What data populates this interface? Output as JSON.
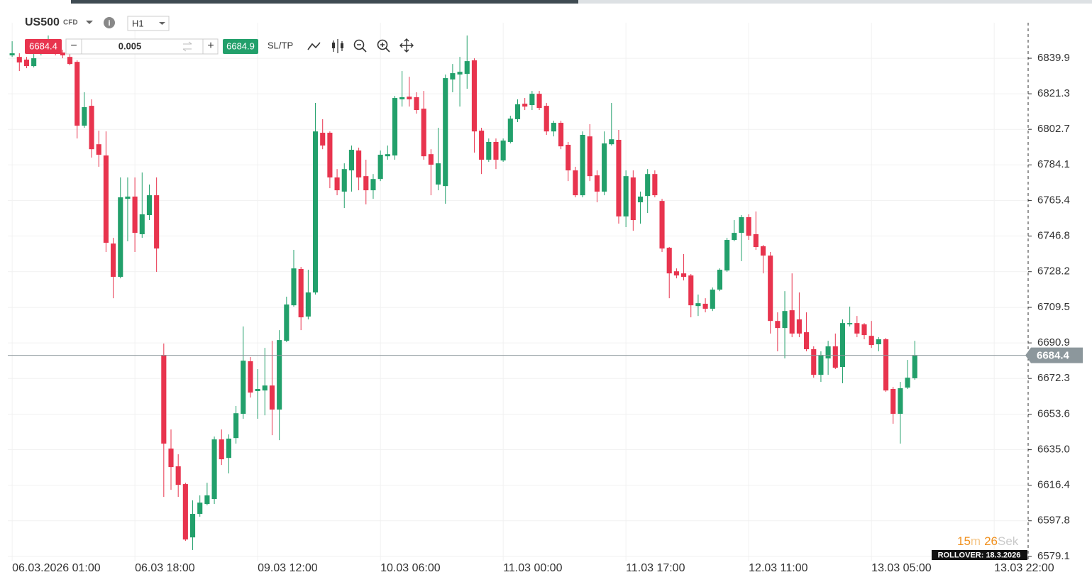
{
  "toolbar": {
    "symbol": "US500",
    "badge": "CFD",
    "timeframe": "H1",
    "sell": "6684.4",
    "volume": "0.005",
    "buy": "6684.9",
    "sltp": "SL/TP"
  },
  "chart_data": {
    "type": "candlestick",
    "up_color": "#22a06b",
    "down_color": "#e8344e",
    "grid": true,
    "open": [
      6841.4,
      6840.6,
      6839.2,
      6835.8,
      6842.5,
      6843.6,
      6845.1,
      6842.9,
      6840.6,
      6838.0,
      6804.6,
      6815.0,
      6794.9,
      6789.0,
      6742.9,
      6725.5,
      6766.3,
      6767.5,
      6747.8,
      6757.8,
      6768.2,
      6684.6,
      6635.6,
      6626.3,
      6617.0,
      6589.1,
      6601.4,
      6606.6,
      6609.2,
      6640.4,
      6630.7,
      6641.1,
      6653.8,
      6681.3,
      6665.7,
      6666.0,
      6668.6,
      6656.0,
      6692.0,
      6710.6,
      6729.6,
      6704.7,
      6717.3,
      6800.9,
      6800.9,
      6777.5,
      6770.1,
      6781.2,
      6791.6,
      6778.2,
      6770.8,
      6776.7,
      6788.6,
      6789.0,
      6818.4,
      6819.8,
      6819.5,
      6813.5,
      6789.7,
      6773.8,
      6773.0,
      6828.8,
      6831.4,
      6831.7,
      6838.8,
      6802.0,
      6786.8,
      6796.1,
      6786.4,
      6796.1,
      6808.0,
      6816.1,
      6815.4,
      6821.3,
      6815.0,
      6801.6,
      6806.1,
      6794.6,
      6781.2,
      6768.2,
      6799.0,
      6778.6,
      6770.1,
      6794.9,
      6797.2,
      6757.1,
      6777.5,
      6764.5,
      6767.8,
      6779.3,
      6765.2,
      6740.7,
      6728.4,
      6727.3,
      6726.2,
      6710.2,
      6711.4,
      6708.8,
      6718.8,
      6728.8,
      6744.8,
      6748.5,
      6756.7,
      6747.8,
      6741.5,
      6736.6,
      6702.4,
      6698.7,
      6708.0,
      6703.2,
      6696.5,
      6687.6,
      6674.2,
      6682.8,
      6689.1,
      6678.3,
      6700.6,
      6701.3,
      6700.6,
      6694.6,
      6690.2,
      6692.8,
      6666.8,
      6653.8,
      6667.5,
      6672.4
    ],
    "high": [
      6848.8,
      6842.5,
      6840.6,
      6842.5,
      6846.6,
      6851.8,
      6848.1,
      6844.4,
      6842.5,
      6838.8,
      6822.1,
      6818.4,
      6802.0,
      6801.6,
      6745.9,
      6777.5,
      6777.5,
      6777.5,
      6780.1,
      6773.8,
      6777.5,
      6690.6,
      6645.6,
      6632.6,
      6617.7,
      6608.5,
      6611.1,
      6617.7,
      6641.9,
      6645.6,
      6643.0,
      6657.9,
      6699.5,
      6683.5,
      6677.2,
      6688.3,
      6692.0,
      6697.6,
      6715.1,
      6739.6,
      6730.7,
      6729.2,
      6816.5,
      6808.0,
      6801.6,
      6781.9,
      6784.9,
      6794.2,
      6793.1,
      6786.8,
      6779.3,
      6791.6,
      6794.2,
      6820.2,
      6833.2,
      6830.2,
      6822.1,
      6822.8,
      6792.3,
      6803.5,
      6831.4,
      6836.9,
      6840.6,
      6851.8,
      6839.9,
      6803.5,
      6797.9,
      6797.9,
      6797.9,
      6809.8,
      6818.4,
      6819.1,
      6822.8,
      6822.8,
      6816.5,
      6807.2,
      6807.2,
      6796.1,
      6783.1,
      6801.6,
      6805.4,
      6781.2,
      6801.6,
      6816.5,
      6802.4,
      6781.2,
      6781.2,
      6770.1,
      6781.9,
      6781.2,
      6766.3,
      6741.1,
      6729.9,
      6737.4,
      6727.0,
      6716.2,
      6714.3,
      6719.9,
      6729.9,
      6745.9,
      6755.2,
      6757.8,
      6758.2,
      6759.7,
      6742.2,
      6738.5,
      6706.9,
      6718.0,
      6727.3,
      6717.3,
      6706.9,
      6689.1,
      6686.5,
      6692.0,
      6695.8,
      6703.2,
      6709.9,
      6705.0,
      6701.3,
      6702.4,
      6693.9,
      6693.5,
      6667.9,
      6670.5,
      6682.0,
      6692.0
    ],
    "low": [
      6840.6,
      6833.2,
      6834.7,
      6835.1,
      6841.4,
      6842.9,
      6841.4,
      6839.9,
      6836.2,
      6797.9,
      6803.5,
      6787.9,
      6783.1,
      6738.5,
      6714.3,
      6724.7,
      6744.1,
      6738.5,
      6745.9,
      6755.2,
      6728.1,
      6610.3,
      6614.0,
      6610.3,
      6587.3,
      6582.5,
      6599.9,
      6605.9,
      6606.6,
      6627.0,
      6622.6,
      6638.2,
      6651.2,
      6662.3,
      6651.2,
      6653.0,
      6642.6,
      6640.0,
      6691.3,
      6709.9,
      6697.6,
      6703.2,
      6716.2,
      6792.3,
      6771.9,
      6768.2,
      6761.5,
      6770.1,
      6770.8,
      6763.4,
      6766.3,
      6775.6,
      6786.8,
      6786.8,
      6814.6,
      6814.6,
      6810.9,
      6786.8,
      6768.2,
      6770.8,
      6763.7,
      6822.1,
      6814.6,
      6823.9,
      6790.5,
      6779.3,
      6785.7,
      6781.9,
      6785.7,
      6795.3,
      6806.5,
      6812.8,
      6812.8,
      6812.8,
      6799.8,
      6799.0,
      6792.3,
      6775.6,
      6767.1,
      6767.1,
      6775.6,
      6764.5,
      6768.2,
      6794.2,
      6753.3,
      6751.5,
      6749.6,
      6753.3,
      6758.9,
      6767.1,
      6738.5,
      6714.3,
      6724.7,
      6723.6,
      6704.3,
      6705.0,
      6706.9,
      6707.6,
      6718.0,
      6728.1,
      6744.1,
      6733.7,
      6744.8,
      6739.6,
      6727.3,
      6695.8,
      6686.5,
      6682.8,
      6693.9,
      6693.9,
      6686.5,
      6672.7,
      6670.5,
      6674.2,
      6677.2,
      6669.8,
      6699.5,
      6693.9,
      6692.8,
      6688.3,
      6686.5,
      6665.3,
      6648.6,
      6638.2,
      6666.8,
      6671.6
    ],
    "close": [
      6842.5,
      6837.7,
      6835.8,
      6839.9,
      6844.4,
      6845.8,
      6842.9,
      6841.4,
      6836.9,
      6804.6,
      6814.3,
      6792.3,
      6789.4,
      6743.3,
      6725.5,
      6767.1,
      6767.5,
      6748.5,
      6758.2,
      6768.2,
      6740.3,
      6638.2,
      6625.9,
      6616.6,
      6588.0,
      6601.4,
      6607.3,
      6611.1,
      6640.4,
      6630.0,
      6640.8,
      6654.1,
      6681.6,
      6664.9,
      6666.8,
      6668.6,
      6656.0,
      6692.4,
      6711.0,
      6729.9,
      6704.3,
      6717.3,
      6801.6,
      6794.2,
      6777.5,
      6770.8,
      6781.9,
      6792.0,
      6777.5,
      6770.8,
      6776.7,
      6789.4,
      6789.7,
      6819.1,
      6819.5,
      6818.4,
      6812.8,
      6788.6,
      6784.2,
      6784.9,
      6829.5,
      6832.1,
      6832.8,
      6838.4,
      6801.6,
      6786.8,
      6796.1,
      6786.8,
      6796.8,
      6808.3,
      6815.8,
      6814.6,
      6821.3,
      6813.9,
      6801.6,
      6806.1,
      6793.8,
      6781.2,
      6768.2,
      6799.8,
      6778.2,
      6770.1,
      6795.3,
      6797.5,
      6757.1,
      6778.2,
      6755.2,
      6767.5,
      6779.3,
      6768.2,
      6740.3,
      6727.3,
      6726.2,
      6725.5,
      6710.6,
      6711.7,
      6708.8,
      6718.8,
      6729.2,
      6744.8,
      6748.5,
      6756.7,
      6747.0,
      6741.1,
      6736.6,
      6702.4,
      6698.7,
      6707.6,
      6695.8,
      6695.8,
      6687.6,
      6674.2,
      6684.6,
      6689.1,
      6677.9,
      6701.3,
      6701.3,
      6695.8,
      6695.0,
      6689.8,
      6692.8,
      6666.0,
      6653.8,
      6667.2,
      6672.7,
      6684.4
    ],
    "xlim": [
      -0.6,
      140.6
    ],
    "xticks": [
      {
        "value": 0,
        "label": "06.03.2026 01:00"
      },
      {
        "value": 17,
        "label": "06.03 18:00"
      },
      {
        "value": 34,
        "label": "09.03 12:00"
      },
      {
        "value": 51,
        "label": "10.03 06:00"
      },
      {
        "value": 68,
        "label": "11.03 00:00"
      },
      {
        "value": 85,
        "label": "11.03 17:00"
      },
      {
        "value": 102,
        "label": "12.03 11:00"
      },
      {
        "value": 119,
        "label": "13.03 05:00"
      },
      {
        "value": 136,
        "label": "13.03 22:00"
      }
    ],
    "ylim": [
      6576.9,
      6858.5
    ],
    "yticks": [
      6839.9,
      6821.3,
      6802.7,
      6784.1,
      6765.4,
      6746.8,
      6728.2,
      6709.5,
      6690.9,
      6672.3,
      6653.6,
      {
        "value": 6635,
        "label": "6635.0"
      },
      6616.4,
      6597.8,
      6579.1
    ],
    "last_price": 6684.4,
    "countdown": {
      "minutes": "15",
      "minutes_unit": "m",
      "seconds": "26",
      "seconds_unit": "Sek"
    },
    "rollover": "ROLLOVER: 18.3.2026"
  }
}
